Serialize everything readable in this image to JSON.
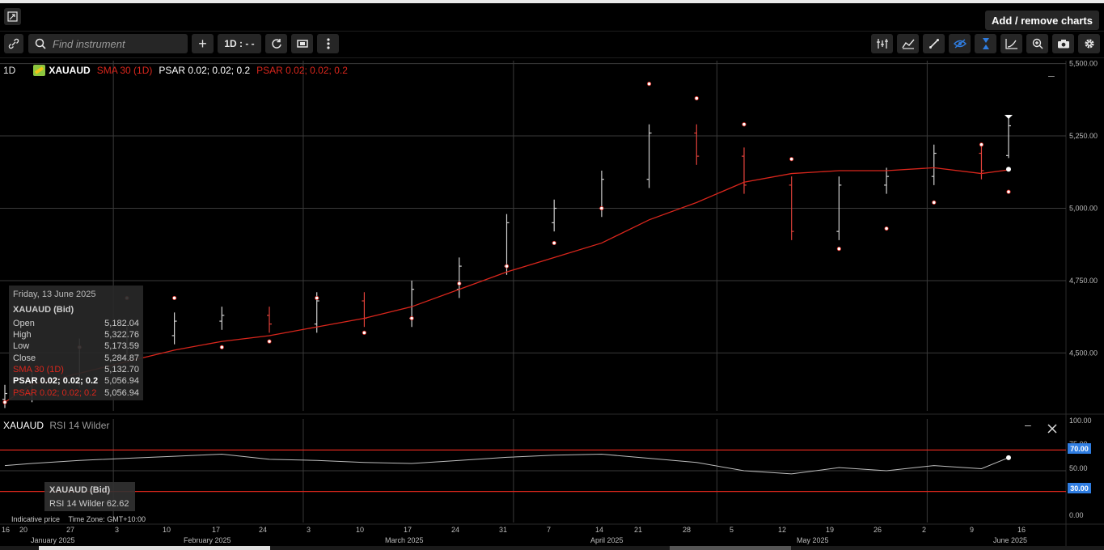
{
  "header": {
    "add_remove": "Add / remove charts"
  },
  "toolbar": {
    "search_placeholder": "Find instrument",
    "interval": "1D : - -",
    "plus": "+"
  },
  "legend": {
    "interval": "1D",
    "symbol": "XAUAUD",
    "sma": "SMA 30 (1D)",
    "psar1": "PSAR 0.02; 0.02; 0.2",
    "psar2": "PSAR 0.02; 0.02; 0.2"
  },
  "tooltip": {
    "date": "Friday, 13 June 2025",
    "title": "XAUAUD (Bid)",
    "rows": [
      {
        "label": "Open",
        "value": "5,182.04"
      },
      {
        "label": "High",
        "value": "5,322.76"
      },
      {
        "label": "Low",
        "value": "5,173.59"
      },
      {
        "label": "Close",
        "value": "5,284.87"
      },
      {
        "label": "SMA 30 (1D)",
        "value": "5,132.70"
      },
      {
        "label": "PSAR 0.02; 0.02; 0.2",
        "value": "5,056.94"
      },
      {
        "label": "PSAR 0.02; 0.02; 0.2",
        "value": "5,056.94"
      }
    ]
  },
  "rsi": {
    "title": "XAUAUD",
    "indicator": "RSI 14 Wilder",
    "tip_title": "XAUAUD (Bid)",
    "tip_value": "RSI 14 Wilder  62.62",
    "labels": [
      "100.00",
      "70.00",
      "50.00",
      "30.00",
      "0.00"
    ],
    "marker_70": "70.00",
    "marker_30": "30.00",
    "partial": "75.00"
  },
  "footer": {
    "indicative": "Indicative price",
    "timezone": "Time Zone: GMT+10:00"
  },
  "colors": {
    "up": "#d2d2d2",
    "down": "#e0413a",
    "sma": "#d9261c",
    "psar": "#ffffff",
    "rsi": "#bdbdbd",
    "rsi_band": "#d9261c",
    "accent": "#2f7de1"
  },
  "chart_data": {
    "type": "line",
    "title": "",
    "symbol": "XAUAUD",
    "y_ticks": [
      "5,500.00",
      "5,250.00",
      "5,000.00",
      "4,750.00",
      "4,500.00"
    ],
    "ylim": [
      4300,
      5510
    ],
    "x_ticks": [
      "16",
      "20",
      "27",
      "3",
      "10",
      "17",
      "24",
      "3",
      "10",
      "17",
      "24",
      "31",
      "7",
      "14",
      "21",
      "28",
      "5",
      "12",
      "19",
      "26",
      "2",
      "9",
      "16"
    ],
    "months": [
      "January 2025",
      "February 2025",
      "March 2025",
      "April 2025",
      "May 2025",
      "June 2025"
    ],
    "dates": [
      "2025-01-16",
      "2025-01-20",
      "2025-01-27",
      "2025-02-03",
      "2025-02-10",
      "2025-02-17",
      "2025-02-24",
      "2025-03-03",
      "2025-03-10",
      "2025-03-17",
      "2025-03-24",
      "2025-03-31",
      "2025-04-07",
      "2025-04-14",
      "2025-04-21",
      "2025-04-28",
      "2025-05-05",
      "2025-05-12",
      "2025-05-19",
      "2025-05-26",
      "2025-06-02",
      "2025-06-09",
      "2025-06-13"
    ],
    "close": [
      4360,
      4410,
      4520,
      4560,
      4610,
      4630,
      4600,
      4680,
      4620,
      4720,
      4800,
      4950,
      5000,
      5100,
      5260,
      5180,
      5080,
      4920,
      5080,
      5110,
      5190,
      5130,
      5285
    ],
    "sma_30": [
      4330,
      4390,
      4430,
      4470,
      4510,
      4540,
      4560,
      4590,
      4620,
      4660,
      4720,
      4780,
      4830,
      4880,
      4960,
      5020,
      5090,
      5120,
      5130,
      5130,
      5140,
      5120,
      5132.7
    ],
    "psar": [
      4330,
      4400,
      4520,
      4690,
      4690,
      4520,
      4540,
      4690,
      4570,
      4620,
      4740,
      4800,
      4880,
      5000,
      5430,
      5380,
      5290,
      5170,
      4860,
      4930,
      5020,
      5220,
      5056.94
    ],
    "rsi_14": [
      55,
      57,
      60,
      62,
      64,
      66,
      61,
      60,
      58,
      57,
      60,
      63,
      65,
      66,
      62,
      58,
      50,
      47,
      53,
      50,
      55,
      52,
      62.62
    ],
    "rsi_levels": [
      70,
      30
    ],
    "rsi_ylim": [
      0,
      100
    ],
    "last": {
      "open": 5182.04,
      "high": 5322.76,
      "low": 5173.59,
      "close": 5284.87,
      "sma": 5132.7,
      "psar": 5056.94,
      "rsi": 62.62
    }
  }
}
